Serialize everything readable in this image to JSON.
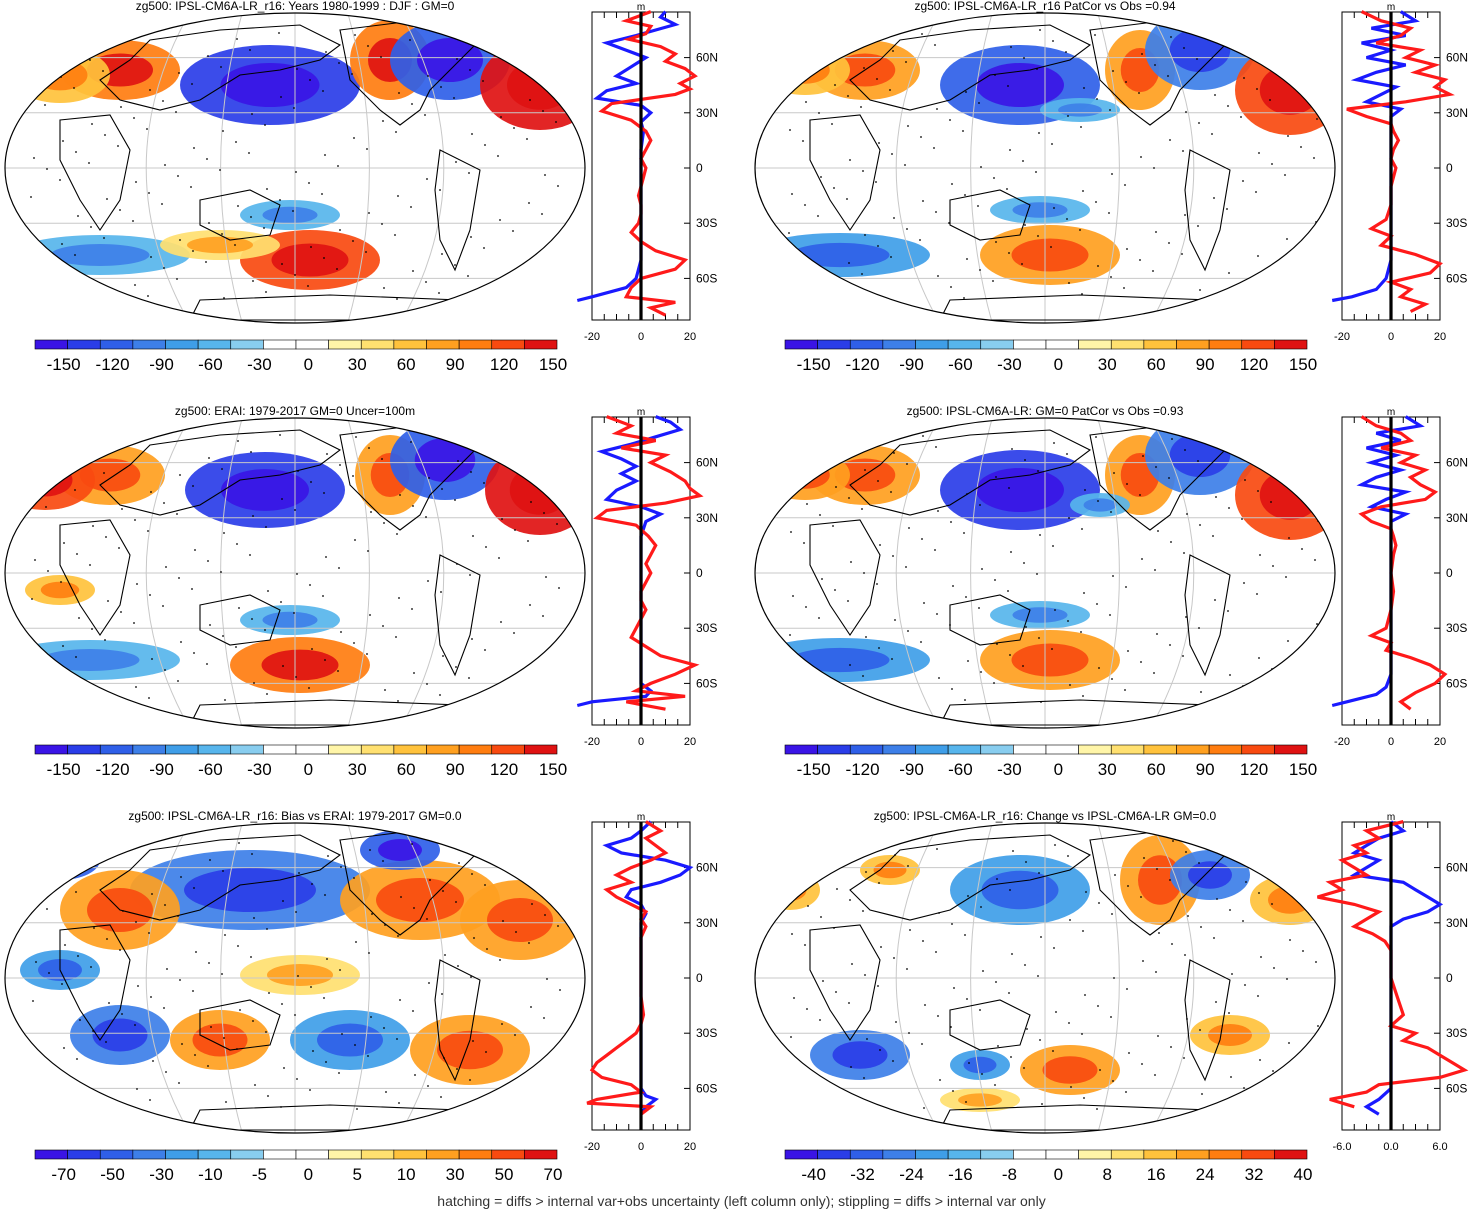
{
  "palette": [
    "#3a14e6",
    "#2a3de8",
    "#2f5fe8",
    "#3d7fe8",
    "#3f9ee8",
    "#57b5ec",
    "#88cdef",
    "#ffffff",
    "#ffffff",
    "#fff5a8",
    "#ffe070",
    "#ffc23c",
    "#ffa020",
    "#ff7d10",
    "#f84a10",
    "#df1212"
  ],
  "line_colors": {
    "model": "#ff1a1a",
    "obs": "#1a1aff",
    "zero": "#000000"
  },
  "footnote": "hatching = diffs > internal var+obs uncertainty (left column only); stippling = diffs > internal var only",
  "chart_data": [
    {
      "type": "heatmap",
      "title": "zg500: IPSL-CM6A-LR_r16: Years 1980-1999 : DJF : GM=0",
      "colorbar_labels": [
        "-150",
        "-120",
        "-90",
        "-60",
        "-30",
        "0",
        "30",
        "60",
        "90",
        "120",
        "150"
      ],
      "lat_labels": [
        "60N",
        "30N",
        "0",
        "30S",
        "60S"
      ],
      "profile_xticks": [
        "-20",
        "0",
        "20"
      ],
      "profile_unit": "m",
      "red_profile": [
        [
          8,
          -8
        ],
        [
          10,
          -14
        ],
        [
          6,
          -4
        ],
        [
          20,
          0
        ],
        [
          26,
          -3
        ],
        [
          24,
          6
        ],
        [
          6,
          2
        ],
        [
          -10,
          2
        ],
        [
          -8,
          4
        ],
        [
          4,
          0
        ],
        [
          2,
          0
        ],
        [
          -2,
          -1
        ],
        [
          0,
          3
        ],
        [
          -2,
          0
        ],
        [
          14,
          -1
        ],
        [
          0,
          0
        ],
        [
          -6,
          0
        ],
        [
          -4,
          -2
        ],
        [
          -1,
          0
        ],
        [
          -4,
          0
        ],
        [
          8,
          0
        ],
        [
          -3,
          0
        ],
        [
          0,
          -12
        ],
        [
          0,
          -26
        ],
        [
          0,
          -32
        ],
        [
          -4,
          0
        ],
        [
          -10,
          0
        ],
        [
          -4,
          0
        ],
        [
          -2,
          0
        ],
        [
          -1,
          0
        ]
      ],
      "blue_profile": []
    }
  ]
}
